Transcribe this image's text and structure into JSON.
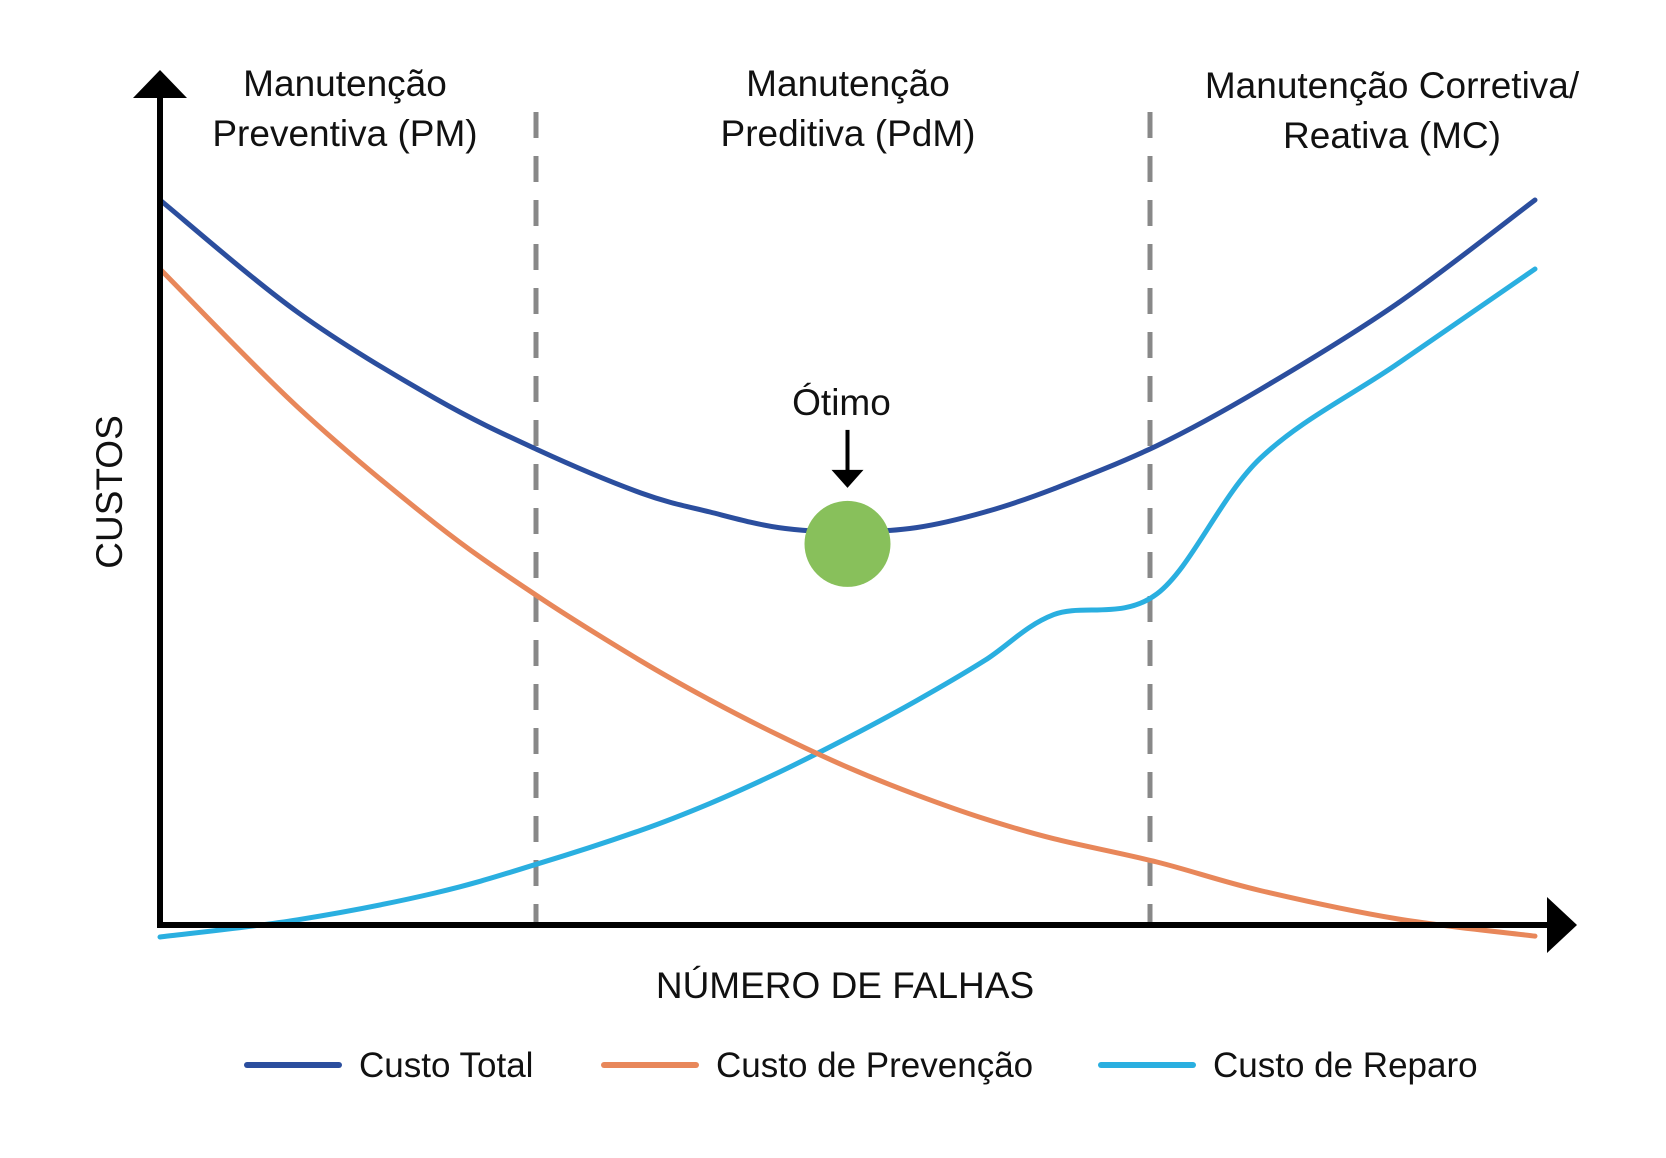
{
  "chart_data": {
    "type": "line",
    "xlabel": "NÚMERO DE FALHAS",
    "ylabel": "CUSTOS",
    "xlim": [
      0,
      100
    ],
    "ylim": [
      0,
      100
    ],
    "grid": false,
    "legend_position": "bottom",
    "regions": [
      {
        "lines": [
          "Manutenção",
          "Preventiva (PM)"
        ]
      },
      {
        "lines": [
          "Manutenção",
          "Preditiva (PdM)"
        ]
      },
      {
        "lines": [
          "Manutenção Corretiva/",
          "Reativa (MC)"
        ]
      }
    ],
    "region_boundaries": [
      27.5,
      72.5
    ],
    "series": [
      {
        "name": "Custo Total",
        "color": "#2b4e9e",
        "x": [
          0,
          10,
          20,
          27.5,
          35,
          40,
          45,
          50,
          55,
          60,
          65,
          72.5,
          80,
          90,
          100
        ],
        "y": [
          100,
          87,
          77,
          71,
          66,
          63.8,
          62,
          61.5,
          62,
          63.8,
          66.5,
          71.5,
          78,
          88,
          100
        ]
      },
      {
        "name": "Custo de Prevenção",
        "color": "#e8875a",
        "x": [
          0,
          10,
          20,
          27.5,
          35,
          40,
          45,
          50,
          55,
          60,
          65,
          72.5,
          80,
          90,
          100
        ],
        "y": [
          92,
          76,
          62.5,
          54,
          46.5,
          42,
          37.9,
          34.2,
          31,
          28.2,
          25.9,
          23.2,
          19.9,
          16.6,
          14.6
        ]
      },
      {
        "name": "Custo de Reparo",
        "color": "#2aafe0",
        "x": [
          0,
          10,
          20,
          27.5,
          35,
          40,
          45,
          50,
          55,
          60,
          65,
          72.5,
          80,
          90,
          100
        ],
        "y": [
          14.5,
          16.5,
          19.6,
          23,
          26.9,
          30,
          33.6,
          37.6,
          41.9,
          46.6,
          51.9,
          54.3,
          70,
          81,
          92
        ]
      }
    ],
    "annotations": [
      {
        "label": "Ótimo",
        "x": 50,
        "y": 61.5,
        "marker_color": "#88c05b"
      }
    ]
  }
}
